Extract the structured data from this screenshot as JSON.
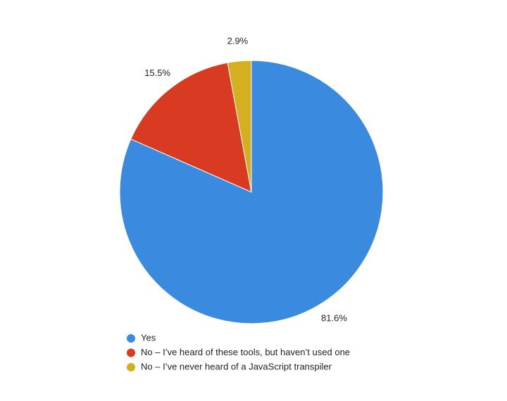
{
  "chart_data": {
    "type": "pie",
    "categories": [
      "Yes",
      "No – I’ve heard of these tools, but haven’t used one",
      "No – I’ve never heard of a JavaScript transpiler"
    ],
    "values": [
      81.6,
      15.5,
      2.9
    ],
    "value_labels": [
      "81.6%",
      "15.5%",
      "2.9%"
    ],
    "colors": [
      "#3a8ae0",
      "#d93a22",
      "#d4b020"
    ]
  }
}
